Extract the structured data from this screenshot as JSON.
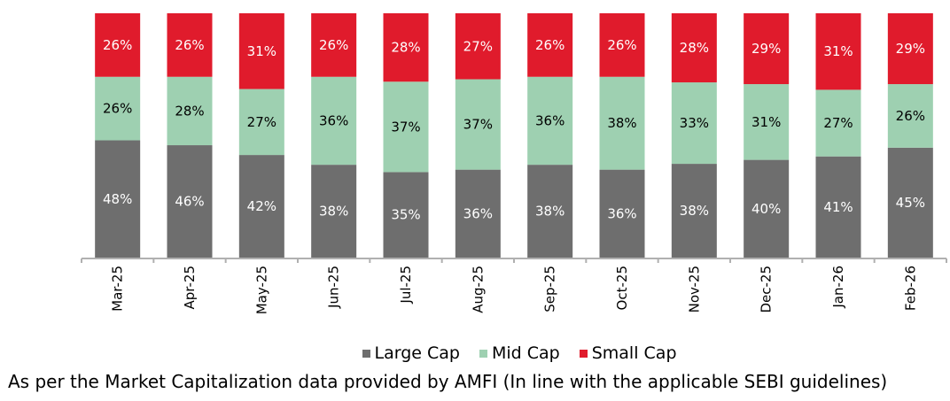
{
  "chart_data": {
    "type": "bar",
    "stacked": true,
    "title": "",
    "xlabel": "",
    "ylabel": "",
    "ylim": [
      0,
      100
    ],
    "grid": false,
    "legend_position": "bottom",
    "categories": [
      "Mar-25",
      "Apr-25",
      "May-25",
      "Jun-25",
      "Jul-25",
      "Aug-25",
      "Sep-25",
      "Oct-25",
      "Nov-25",
      "Dec-25",
      "Jan-26",
      "Feb-26"
    ],
    "tick_labels": [
      "Mar-25",
      "Apr-25",
      "May-25",
      "Jun-25",
      "Jul-25",
      "Aug-25",
      "Sep-25",
      "Oct-25",
      "Nov-25",
      "Dec-25",
      "Jan-26",
      "Feb-26"
    ],
    "series": [
      {
        "name": "Large Cap",
        "color": "#6e6e6e",
        "label_color": "#ffffff",
        "values": [
          48,
          46,
          42,
          38,
          35,
          36,
          38,
          36,
          38,
          40,
          41,
          45
        ]
      },
      {
        "name": "Mid Cap",
        "color": "#9ed0b1",
        "label_color": "#000000",
        "values": [
          26,
          28,
          27,
          36,
          37,
          37,
          36,
          38,
          33,
          31,
          27,
          26
        ]
      },
      {
        "name": "Small Cap",
        "color": "#e01b2c",
        "label_color": "#ffffff",
        "values": [
          26,
          26,
          31,
          26,
          28,
          27,
          26,
          26,
          28,
          29,
          31,
          29
        ]
      }
    ],
    "value_label_suffix": "%"
  },
  "legend": {
    "items": [
      {
        "label": "Large Cap",
        "color": "#6e6e6e"
      },
      {
        "label": "Mid Cap",
        "color": "#9ed0b1"
      },
      {
        "label": "Small Cap",
        "color": "#e01b2c"
      }
    ]
  },
  "caption": "As per the Market Capitalization data provided by AMFI (In line with the applicable SEBI guidelines)"
}
